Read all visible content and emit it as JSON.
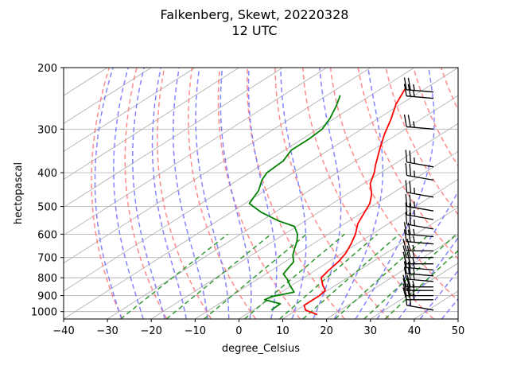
{
  "chart_data": {
    "type": "line",
    "title": "Falkenberg, Skewt, 20220328",
    "subtitle": "12 UTC",
    "xlabel": "degree_Celsius",
    "ylabel": "hectopascal",
    "xlim": [
      -40,
      50
    ],
    "ylim": [
      1050,
      200
    ],
    "y_scale": "log",
    "grid": true,
    "x_ticks": [
      "−40",
      "−30",
      "−20",
      "−10",
      "0",
      "10",
      "20",
      "30",
      "40",
      "50"
    ],
    "y_ticks": [
      "200",
      "300",
      "400",
      "500",
      "600",
      "700",
      "800",
      "900",
      "1000"
    ],
    "colors": {
      "temperature": "#ff0000",
      "dewpoint": "#008000",
      "dry_adiabats": "#ff7777",
      "moist_adiabats": "#7777ff",
      "mixing_ratio": "#339933",
      "isotherms": "#aaaaaa",
      "wind_barbs": "#000000"
    },
    "series": [
      {
        "key": "temperature",
        "points": [
          [
            16.3,
            1020
          ],
          [
            12.0,
            990
          ],
          [
            10.0,
            960
          ],
          [
            10.0,
            900
          ],
          [
            9.5,
            870
          ],
          [
            7.0,
            840
          ],
          [
            4.0,
            800
          ],
          [
            3.0,
            760
          ],
          [
            2.2,
            720
          ],
          [
            0.8,
            680
          ],
          [
            -1.3,
            640
          ],
          [
            -3.8,
            600
          ],
          [
            -7.0,
            560
          ],
          [
            -9.5,
            520
          ],
          [
            -11.5,
            490
          ],
          [
            -14.5,
            460
          ],
          [
            -18.5,
            430
          ],
          [
            -21.5,
            400
          ],
          [
            -24.0,
            380
          ],
          [
            -29.0,
            340
          ],
          [
            -33.0,
            310
          ],
          [
            -37.0,
            280
          ],
          [
            -41.0,
            255
          ],
          [
            -44.5,
            230
          ]
        ]
      },
      {
        "key": "dewpoint",
        "points": [
          [
            4.2,
            990
          ],
          [
            4.0,
            950
          ],
          [
            2.0,
            940
          ],
          [
            -1.0,
            925
          ],
          [
            -0.5,
            905
          ],
          [
            3.0,
            880
          ],
          [
            -0.5,
            840
          ],
          [
            -3.0,
            810
          ],
          [
            -6.0,
            780
          ],
          [
            -7.0,
            750
          ],
          [
            -8.0,
            720
          ],
          [
            -10.5,
            690
          ],
          [
            -12.5,
            660
          ],
          [
            -14.5,
            630
          ],
          [
            -17.0,
            600
          ],
          [
            -20.5,
            570
          ],
          [
            -26.0,
            550
          ],
          [
            -33.0,
            520
          ],
          [
            -39.0,
            490
          ],
          [
            -41.5,
            450
          ],
          [
            -44.5,
            420
          ],
          [
            -46.0,
            400
          ],
          [
            -46.5,
            370
          ],
          [
            -48.5,
            345
          ],
          [
            -48.5,
            320
          ],
          [
            -49.0,
            300
          ],
          [
            -51.0,
            280
          ],
          [
            -54.0,
            258
          ],
          [
            -57.0,
            240
          ]
        ]
      }
    ],
    "wind_barbs": [
      {
        "p": 990,
        "speed_kt": 15,
        "dir": 280
      },
      {
        "p": 925,
        "speed_kt": 25,
        "dir": 270
      },
      {
        "p": 900,
        "speed_kt": 25,
        "dir": 270
      },
      {
        "p": 870,
        "speed_kt": 25,
        "dir": 270
      },
      {
        "p": 850,
        "speed_kt": 25,
        "dir": 270
      },
      {
        "p": 820,
        "speed_kt": 25,
        "dir": 275
      },
      {
        "p": 790,
        "speed_kt": 25,
        "dir": 275
      },
      {
        "p": 760,
        "speed_kt": 25,
        "dir": 275
      },
      {
        "p": 730,
        "speed_kt": 25,
        "dir": 270
      },
      {
        "p": 700,
        "speed_kt": 25,
        "dir": 270
      },
      {
        "p": 670,
        "speed_kt": 25,
        "dir": 270
      },
      {
        "p": 640,
        "speed_kt": 25,
        "dir": 275
      },
      {
        "p": 610,
        "speed_kt": 25,
        "dir": 275
      },
      {
        "p": 580,
        "speed_kt": 25,
        "dir": 280
      },
      {
        "p": 545,
        "speed_kt": 25,
        "dir": 280
      },
      {
        "p": 515,
        "speed_kt": 25,
        "dir": 280
      },
      {
        "p": 470,
        "speed_kt": 25,
        "dir": 280
      },
      {
        "p": 420,
        "speed_kt": 25,
        "dir": 280
      },
      {
        "p": 385,
        "speed_kt": 25,
        "dir": 280
      },
      {
        "p": 300,
        "speed_kt": 25,
        "dir": 275
      },
      {
        "p": 245,
        "speed_kt": 25,
        "dir": 275
      },
      {
        "p": 235,
        "speed_kt": 25,
        "dir": 275
      }
    ]
  }
}
